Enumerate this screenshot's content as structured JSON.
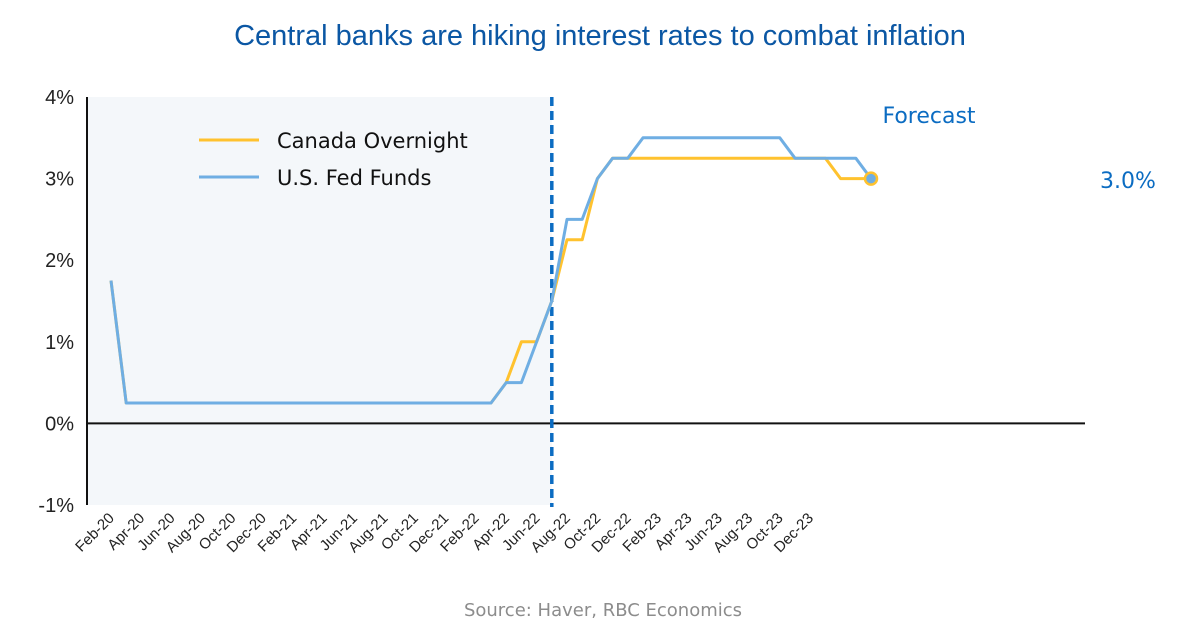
{
  "chart_data": {
    "type": "line",
    "title": "Central banks are hiking interest rates to combat inflation",
    "source": "Source: Haver, RBC Economics",
    "ylim": [
      -1,
      4
    ],
    "yticks": [
      "4%",
      "3%",
      "2%",
      "1%",
      "0%",
      "-1%"
    ],
    "ytick_values": [
      4,
      3,
      2,
      1,
      0,
      -1
    ],
    "x_start": "Feb-20",
    "x_ticks": [
      "Feb-20",
      "Apr-20",
      "Jun-20",
      "Aug-20",
      "Oct-20",
      "Dec-20",
      "Feb-21",
      "Apr-21",
      "Jun-21",
      "Aug-21",
      "Oct-21",
      "Dec-21",
      "Feb-22",
      "Apr-22",
      "Jun-22",
      "Aug-22",
      "Oct-22",
      "Dec-22",
      "Feb-23",
      "Apr-23",
      "Jun-23",
      "Aug-23",
      "Oct-23",
      "Dec-23"
    ],
    "forecast_start_month_index": 29,
    "forecast_label": "Forecast",
    "end_label": "3.0%",
    "colors": {
      "canada": "#ffc22e",
      "us": "#6faee3",
      "annotation": "#0b6cc2",
      "shade": "#f4f7fa",
      "axis": "#111111"
    },
    "series": [
      {
        "name": "Canada Overnight",
        "key": "canada",
        "points": [
          [
            0,
            1.75
          ],
          [
            1,
            0.25
          ],
          [
            7,
            0.25
          ],
          [
            13,
            0.25
          ],
          [
            24,
            0.25
          ],
          [
            25,
            0.25
          ],
          [
            26,
            0.5
          ],
          [
            27,
            1.0
          ],
          [
            28,
            1.0
          ],
          [
            29,
            1.5
          ],
          [
            30,
            2.25
          ],
          [
            31,
            2.25
          ],
          [
            32,
            3.0
          ],
          [
            33,
            3.25
          ],
          [
            46,
            3.25
          ],
          [
            47,
            3.25
          ],
          [
            48,
            3.0
          ],
          [
            50,
            3.0
          ]
        ]
      },
      {
        "name": "U.S. Fed Funds",
        "key": "us",
        "points": [
          [
            0,
            1.75
          ],
          [
            1,
            0.25
          ],
          [
            7,
            0.25
          ],
          [
            13,
            0.25
          ],
          [
            24,
            0.25
          ],
          [
            25,
            0.25
          ],
          [
            26,
            0.5
          ],
          [
            27,
            0.5
          ],
          [
            29,
            1.5
          ],
          [
            30,
            2.5
          ],
          [
            31,
            2.5
          ],
          [
            32,
            3.0
          ],
          [
            33,
            3.25
          ],
          [
            34,
            3.25
          ],
          [
            35,
            3.5
          ],
          [
            43,
            3.5
          ],
          [
            44,
            3.5
          ],
          [
            45,
            3.25
          ],
          [
            47,
            3.25
          ],
          [
            49,
            3.25
          ],
          [
            50,
            3.0
          ]
        ]
      }
    ],
    "legend": [
      "Canada Overnight",
      "U.S. Fed Funds"
    ]
  }
}
